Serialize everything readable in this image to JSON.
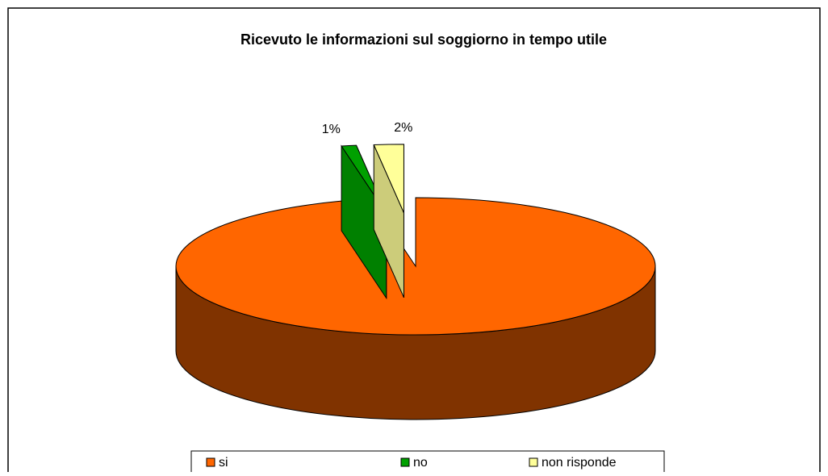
{
  "chart_data": {
    "type": "pie",
    "title": "Ricevuto le informazioni sul soggiorno in tempo utile",
    "categories": [
      "si",
      "no",
      "non risponde"
    ],
    "values": [
      97,
      1,
      2
    ],
    "value_labels": [
      "97%",
      "1%",
      "2%"
    ],
    "colors": [
      "#ff6600",
      "#00a000",
      "#ffff99"
    ],
    "legend": "bottom"
  }
}
